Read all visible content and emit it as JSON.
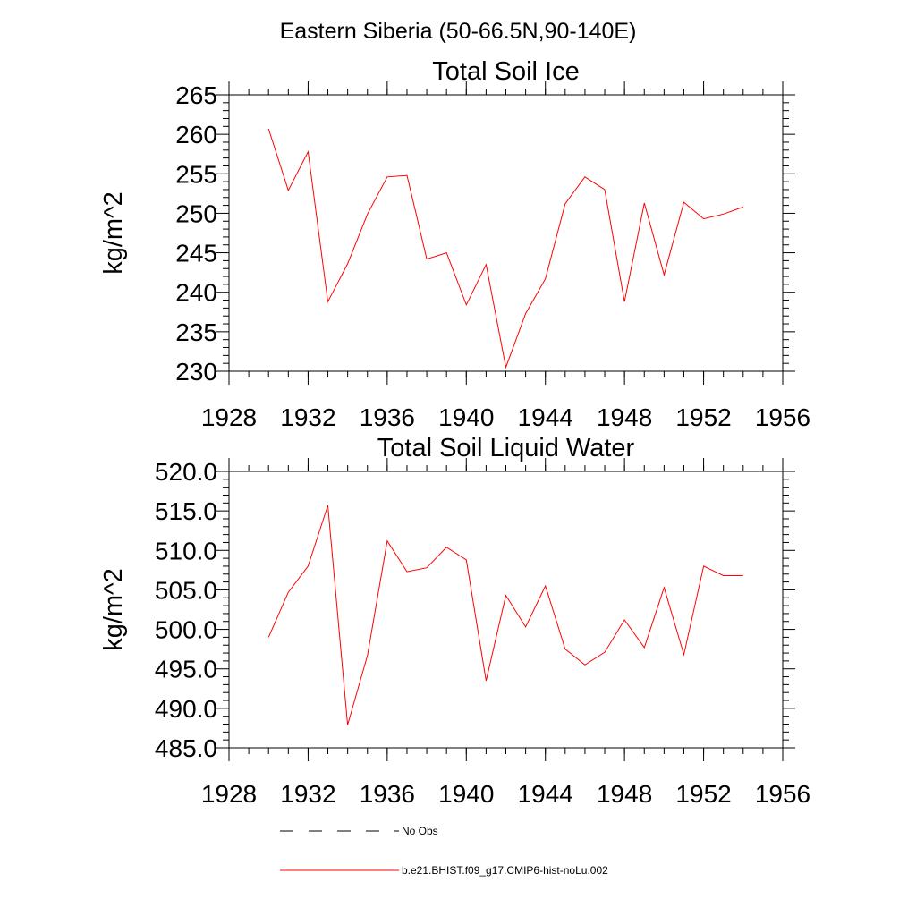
{
  "figure_title": "Eastern Siberia (50-66.5N,90-140E)",
  "chart_data": [
    {
      "type": "line",
      "title": "Total Soil Ice",
      "xlabel": "",
      "ylabel": "kg/m^2",
      "xlim": [
        1928,
        1956
      ],
      "ylim": [
        230,
        265
      ],
      "x_ticks": [
        "1928",
        "1932",
        "1936",
        "1940",
        "1944",
        "1948",
        "1952",
        "1956"
      ],
      "y_ticks": [
        "230",
        "235",
        "240",
        "245",
        "250",
        "255",
        "260",
        "265"
      ],
      "grid": false,
      "color": "#ff0000",
      "x": [
        1930,
        1931,
        1932,
        1933,
        1934,
        1935,
        1936,
        1937,
        1938,
        1939,
        1940,
        1941,
        1942,
        1943,
        1944,
        1945,
        1946,
        1947,
        1948,
        1949,
        1950,
        1951,
        1952,
        1953,
        1954
      ],
      "values": [
        260.7,
        252.9,
        257.8,
        238.8,
        243.6,
        249.9,
        254.6,
        254.8,
        244.2,
        245.0,
        238.4,
        243.5,
        230.5,
        237.3,
        241.7,
        251.2,
        254.6,
        253.0,
        238.8,
        251.3,
        242.2,
        251.4,
        249.3,
        249.9,
        250.8
      ]
    },
    {
      "type": "line",
      "title": "Total Soil Liquid Water",
      "xlabel": "",
      "ylabel": "kg/m^2",
      "xlim": [
        1928,
        1956
      ],
      "ylim": [
        485.0,
        520.0
      ],
      "x_ticks": [
        "1928",
        "1932",
        "1936",
        "1940",
        "1944",
        "1948",
        "1952",
        "1956"
      ],
      "y_ticks": [
        "485.0",
        "490.0",
        "495.0",
        "500.0",
        "505.0",
        "510.0",
        "515.0",
        "520.0"
      ],
      "grid": false,
      "color": "#ff0000",
      "x": [
        1930,
        1931,
        1932,
        1933,
        1934,
        1935,
        1936,
        1937,
        1938,
        1939,
        1940,
        1941,
        1942,
        1943,
        1944,
        1945,
        1946,
        1947,
        1948,
        1949,
        1950,
        1951,
        1952,
        1953,
        1954
      ],
      "values": [
        499.0,
        504.7,
        508.0,
        515.7,
        487.9,
        496.7,
        511.2,
        507.3,
        507.8,
        510.4,
        508.8,
        493.5,
        504.3,
        500.3,
        505.5,
        497.5,
        495.5,
        497.1,
        501.2,
        497.7,
        505.3,
        496.8,
        508.0,
        506.8,
        506.8
      ]
    }
  ],
  "legend": [
    {
      "label": "No Obs",
      "style": "dashed",
      "color": "#000000"
    },
    {
      "label": "b.e21.BHIST.f09_g17.CMIP6-hist-noLu.002",
      "style": "solid",
      "color": "#ff0000"
    }
  ]
}
